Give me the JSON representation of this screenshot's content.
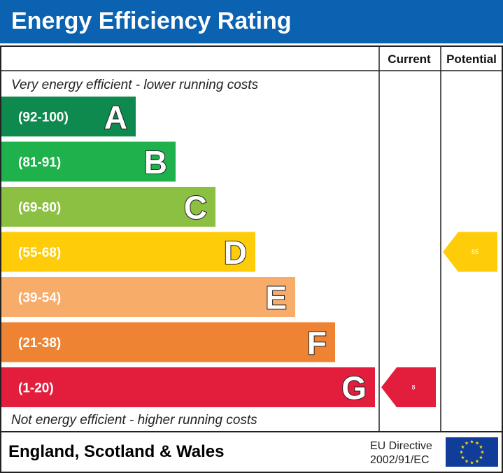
{
  "header": {
    "title": "Energy Efficiency Rating"
  },
  "columns": {
    "current": "Current",
    "potential": "Potential"
  },
  "notes": {
    "top": "Very energy efficient - lower running costs",
    "bottom": "Not energy efficient - higher running costs"
  },
  "footer": {
    "country": "England, Scotland & Wales",
    "eu_line1": "EU Directive",
    "eu_line2": "2002/91/EC"
  },
  "chart_data": {
    "type": "bar",
    "categories": [
      "A",
      "B",
      "C",
      "D",
      "E",
      "F",
      "G"
    ],
    "ranges": [
      "(92-100)",
      "(81-91)",
      "(69-80)",
      "(55-68)",
      "(39-54)",
      "(21-38)",
      "(1-20)"
    ],
    "range_bounds": [
      [
        92,
        100
      ],
      [
        81,
        91
      ],
      [
        69,
        80
      ],
      [
        55,
        68
      ],
      [
        39,
        54
      ],
      [
        21,
        38
      ],
      [
        1,
        20
      ]
    ],
    "colors": [
      "#0f8a4e",
      "#1fb14b",
      "#8cc043",
      "#ffcc0a",
      "#f7ac6a",
      "#ee8433",
      "#e31d3c"
    ],
    "current": {
      "value": 8,
      "band": "G"
    },
    "potential": {
      "value": 55,
      "band": "D"
    }
  }
}
